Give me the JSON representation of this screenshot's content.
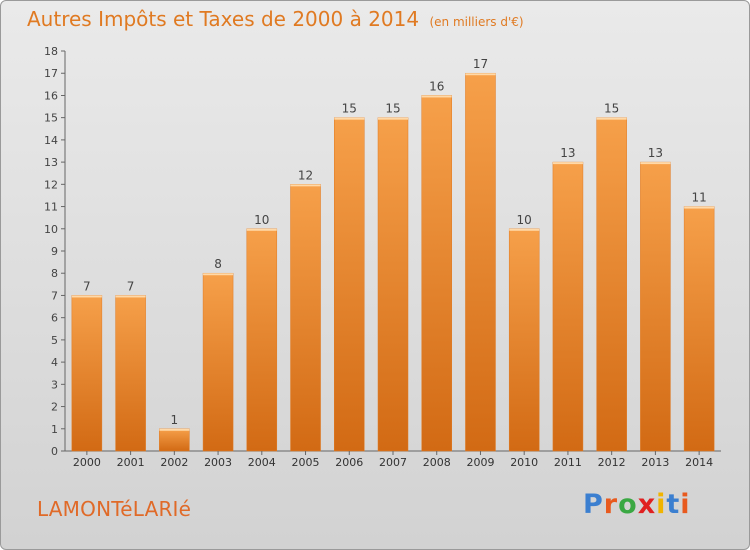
{
  "title": "Autres Impôts et Taxes de 2000 à 2014",
  "subtitle": "(en milliers d'€)",
  "commune": "LAMONTéLARIé",
  "brand": {
    "letters": [
      "P",
      "r",
      "o",
      "x",
      "i",
      "t",
      "i"
    ],
    "colors": [
      "#3b7fd0",
      "#e85a1e",
      "#3aa843",
      "#e02020",
      "#f0b400",
      "#3b7fd0",
      "#e85a1e"
    ]
  },
  "chart_data": {
    "type": "bar",
    "categories": [
      "2000",
      "2001",
      "2002",
      "2003",
      "2004",
      "2005",
      "2006",
      "2007",
      "2008",
      "2009",
      "2010",
      "2011",
      "2012",
      "2013",
      "2014"
    ],
    "values": [
      7,
      7,
      1,
      8,
      10,
      12,
      15,
      15,
      16,
      17,
      10,
      13,
      15,
      13,
      11
    ],
    "ylim": [
      0,
      18
    ],
    "yticks": [
      "0",
      "1",
      "2",
      "3",
      "4",
      "5",
      "6",
      "7",
      "8",
      "9",
      "10",
      "11",
      "12",
      "13",
      "14",
      "15",
      "16",
      "17",
      "18"
    ],
    "bar_color": "#f08a2c",
    "grid": false
  }
}
